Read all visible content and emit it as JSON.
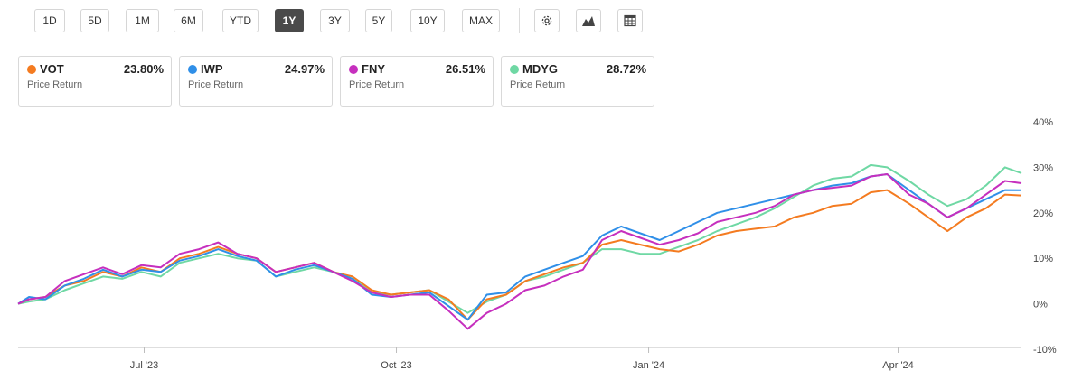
{
  "toolbar": {
    "ranges": [
      "1D",
      "5D",
      "1M",
      "6M",
      "YTD",
      "1Y",
      "3Y",
      "5Y",
      "10Y",
      "MAX"
    ],
    "active_range": "1Y",
    "icons": [
      "gear-icon",
      "area-chart-icon",
      "table-icon"
    ]
  },
  "legend_cards": [
    {
      "symbol": "VOT",
      "value": "23.80%",
      "subtitle": "Price Return",
      "color": "#f47b20"
    },
    {
      "symbol": "IWP",
      "value": "24.97%",
      "subtitle": "Price Return",
      "color": "#2f8fe8"
    },
    {
      "symbol": "FNY",
      "value": "26.51%",
      "subtitle": "Price Return",
      "color": "#c62fbe"
    },
    {
      "symbol": "MDYG",
      "value": "28.72%",
      "subtitle": "Price Return",
      "color": "#6fd8a4"
    }
  ],
  "chart_data": {
    "type": "line",
    "title": "",
    "xlabel": "",
    "ylabel": "",
    "ylim": [
      -10,
      40
    ],
    "yticks": [
      "40%",
      "30%",
      "20%",
      "10%",
      "0%",
      "-10%"
    ],
    "ytick_values": [
      40,
      30,
      20,
      10,
      0,
      -10
    ],
    "xticks": [
      {
        "label": "Jul '23",
        "date": "2023-07-01"
      },
      {
        "label": "Oct '23",
        "date": "2023-10-01"
      },
      {
        "label": "Jan '24",
        "date": "2024-01-01"
      },
      {
        "label": "Apr '24",
        "date": "2024-04-01"
      }
    ],
    "xlim": [
      "2023-05-16",
      "2024-05-16"
    ],
    "grid": false,
    "legend": "top",
    "series": [
      {
        "name": "VOT",
        "color": "#f47b20",
        "points": [
          [
            "2023-05-16",
            0
          ],
          [
            "2023-05-20",
            1
          ],
          [
            "2023-05-26",
            1.5
          ],
          [
            "2023-06-02",
            4
          ],
          [
            "2023-06-09",
            5
          ],
          [
            "2023-06-16",
            7
          ],
          [
            "2023-06-23",
            6
          ],
          [
            "2023-06-30",
            8
          ],
          [
            "2023-07-07",
            7
          ],
          [
            "2023-07-14",
            10
          ],
          [
            "2023-07-21",
            11
          ],
          [
            "2023-07-28",
            12.5
          ],
          [
            "2023-08-04",
            11
          ],
          [
            "2023-08-11",
            10
          ],
          [
            "2023-08-18",
            7
          ],
          [
            "2023-08-25",
            8
          ],
          [
            "2023-09-01",
            9
          ],
          [
            "2023-09-08",
            7
          ],
          [
            "2023-09-15",
            6
          ],
          [
            "2023-09-22",
            3
          ],
          [
            "2023-09-29",
            2
          ],
          [
            "2023-10-06",
            2.5
          ],
          [
            "2023-10-13",
            3
          ],
          [
            "2023-10-20",
            1
          ],
          [
            "2023-10-27",
            -3.5
          ],
          [
            "2023-11-03",
            1
          ],
          [
            "2023-11-10",
            2
          ],
          [
            "2023-11-17",
            5
          ],
          [
            "2023-11-24",
            6.5
          ],
          [
            "2023-12-01",
            8
          ],
          [
            "2023-12-08",
            9
          ],
          [
            "2023-12-15",
            13
          ],
          [
            "2023-12-22",
            14
          ],
          [
            "2023-12-29",
            13
          ],
          [
            "2024-01-05",
            12
          ],
          [
            "2024-01-12",
            11.5
          ],
          [
            "2024-01-19",
            13
          ],
          [
            "2024-01-26",
            15
          ],
          [
            "2024-02-02",
            16
          ],
          [
            "2024-02-09",
            16.5
          ],
          [
            "2024-02-16",
            17
          ],
          [
            "2024-02-23",
            19
          ],
          [
            "2024-03-01",
            20
          ],
          [
            "2024-03-08",
            21.5
          ],
          [
            "2024-03-15",
            22
          ],
          [
            "2024-03-22",
            24.5
          ],
          [
            "2024-03-28",
            25
          ],
          [
            "2024-04-05",
            22
          ],
          [
            "2024-04-12",
            19
          ],
          [
            "2024-04-19",
            16
          ],
          [
            "2024-04-26",
            19
          ],
          [
            "2024-05-03",
            21
          ],
          [
            "2024-05-10",
            24
          ],
          [
            "2024-05-16",
            23.8
          ]
        ]
      },
      {
        "name": "IWP",
        "color": "#2f8fe8",
        "points": [
          [
            "2023-05-16",
            0
          ],
          [
            "2023-05-20",
            1.5
          ],
          [
            "2023-05-26",
            1
          ],
          [
            "2023-06-02",
            4
          ],
          [
            "2023-06-09",
            5.5
          ],
          [
            "2023-06-16",
            7.5
          ],
          [
            "2023-06-23",
            6
          ],
          [
            "2023-06-30",
            7.5
          ],
          [
            "2023-07-07",
            7
          ],
          [
            "2023-07-14",
            9.5
          ],
          [
            "2023-07-21",
            10.5
          ],
          [
            "2023-07-28",
            12
          ],
          [
            "2023-08-04",
            10.5
          ],
          [
            "2023-08-11",
            9.5
          ],
          [
            "2023-08-18",
            6
          ],
          [
            "2023-08-25",
            7.5
          ],
          [
            "2023-09-01",
            8.5
          ],
          [
            "2023-09-08",
            7
          ],
          [
            "2023-09-15",
            5.5
          ],
          [
            "2023-09-22",
            2
          ],
          [
            "2023-09-29",
            1.5
          ],
          [
            "2023-10-06",
            2
          ],
          [
            "2023-10-13",
            2.5
          ],
          [
            "2023-10-20",
            -0.5
          ],
          [
            "2023-10-27",
            -3.5
          ],
          [
            "2023-11-03",
            2
          ],
          [
            "2023-11-10",
            2.5
          ],
          [
            "2023-11-17",
            6
          ],
          [
            "2023-11-24",
            7.5
          ],
          [
            "2023-12-01",
            9
          ],
          [
            "2023-12-08",
            10.5
          ],
          [
            "2023-12-15",
            15
          ],
          [
            "2023-12-22",
            17
          ],
          [
            "2023-12-29",
            15.5
          ],
          [
            "2024-01-05",
            14
          ],
          [
            "2024-01-12",
            16
          ],
          [
            "2024-01-19",
            18
          ],
          [
            "2024-01-26",
            20
          ],
          [
            "2024-02-02",
            21
          ],
          [
            "2024-02-09",
            22
          ],
          [
            "2024-02-16",
            23
          ],
          [
            "2024-02-23",
            24
          ],
          [
            "2024-03-01",
            25
          ],
          [
            "2024-03-08",
            26
          ],
          [
            "2024-03-15",
            26.5
          ],
          [
            "2024-03-22",
            28
          ],
          [
            "2024-03-28",
            28.5
          ],
          [
            "2024-04-05",
            25
          ],
          [
            "2024-04-12",
            22
          ],
          [
            "2024-04-19",
            19
          ],
          [
            "2024-04-26",
            21
          ],
          [
            "2024-05-03",
            23
          ],
          [
            "2024-05-10",
            25
          ],
          [
            "2024-05-16",
            24.97
          ]
        ]
      },
      {
        "name": "FNY",
        "color": "#c62fbe",
        "points": [
          [
            "2023-05-16",
            0
          ],
          [
            "2023-05-20",
            1
          ],
          [
            "2023-05-26",
            1.5
          ],
          [
            "2023-06-02",
            5
          ],
          [
            "2023-06-09",
            6.5
          ],
          [
            "2023-06-16",
            8
          ],
          [
            "2023-06-23",
            6.5
          ],
          [
            "2023-06-30",
            8.5
          ],
          [
            "2023-07-07",
            8
          ],
          [
            "2023-07-14",
            11
          ],
          [
            "2023-07-21",
            12
          ],
          [
            "2023-07-28",
            13.5
          ],
          [
            "2023-08-04",
            11
          ],
          [
            "2023-08-11",
            10
          ],
          [
            "2023-08-18",
            7
          ],
          [
            "2023-08-25",
            8
          ],
          [
            "2023-09-01",
            9
          ],
          [
            "2023-09-08",
            7
          ],
          [
            "2023-09-15",
            5
          ],
          [
            "2023-09-22",
            2.5
          ],
          [
            "2023-09-29",
            1.5
          ],
          [
            "2023-10-06",
            2
          ],
          [
            "2023-10-13",
            2
          ],
          [
            "2023-10-20",
            -1.5
          ],
          [
            "2023-10-27",
            -5.5
          ],
          [
            "2023-11-03",
            -2
          ],
          [
            "2023-11-10",
            0
          ],
          [
            "2023-11-17",
            3
          ],
          [
            "2023-11-24",
            4
          ],
          [
            "2023-12-01",
            6
          ],
          [
            "2023-12-08",
            7.5
          ],
          [
            "2023-12-15",
            14
          ],
          [
            "2023-12-22",
            16
          ],
          [
            "2023-12-29",
            14.5
          ],
          [
            "2024-01-05",
            13
          ],
          [
            "2024-01-12",
            14
          ],
          [
            "2024-01-19",
            15.5
          ],
          [
            "2024-01-26",
            18
          ],
          [
            "2024-02-02",
            19
          ],
          [
            "2024-02-09",
            20
          ],
          [
            "2024-02-16",
            21.5
          ],
          [
            "2024-02-23",
            24
          ],
          [
            "2024-03-01",
            25
          ],
          [
            "2024-03-08",
            25.5
          ],
          [
            "2024-03-15",
            26
          ],
          [
            "2024-03-22",
            28
          ],
          [
            "2024-03-28",
            28.5
          ],
          [
            "2024-04-05",
            24
          ],
          [
            "2024-04-12",
            22
          ],
          [
            "2024-04-19",
            19
          ],
          [
            "2024-04-26",
            21
          ],
          [
            "2024-05-03",
            24
          ],
          [
            "2024-05-10",
            27
          ],
          [
            "2024-05-16",
            26.51
          ]
        ]
      },
      {
        "name": "MDYG",
        "color": "#6fd8a4",
        "points": [
          [
            "2023-05-16",
            0
          ],
          [
            "2023-05-20",
            0.5
          ],
          [
            "2023-05-26",
            1
          ],
          [
            "2023-06-02",
            3
          ],
          [
            "2023-06-09",
            4.5
          ],
          [
            "2023-06-16",
            6
          ],
          [
            "2023-06-23",
            5.5
          ],
          [
            "2023-06-30",
            7
          ],
          [
            "2023-07-07",
            6
          ],
          [
            "2023-07-14",
            9
          ],
          [
            "2023-07-21",
            10
          ],
          [
            "2023-07-28",
            11
          ],
          [
            "2023-08-04",
            10
          ],
          [
            "2023-08-11",
            9.5
          ],
          [
            "2023-08-18",
            6
          ],
          [
            "2023-08-25",
            7
          ],
          [
            "2023-09-01",
            8
          ],
          [
            "2023-09-08",
            7
          ],
          [
            "2023-09-15",
            5.5
          ],
          [
            "2023-09-22",
            2.5
          ],
          [
            "2023-09-29",
            2
          ],
          [
            "2023-10-06",
            2.5
          ],
          [
            "2023-10-13",
            3
          ],
          [
            "2023-10-20",
            0.5
          ],
          [
            "2023-10-27",
            -2
          ],
          [
            "2023-11-03",
            0.5
          ],
          [
            "2023-11-10",
            2
          ],
          [
            "2023-11-17",
            5
          ],
          [
            "2023-11-24",
            6
          ],
          [
            "2023-12-01",
            7.5
          ],
          [
            "2023-12-08",
            9
          ],
          [
            "2023-12-15",
            12
          ],
          [
            "2023-12-22",
            12
          ],
          [
            "2023-12-29",
            11
          ],
          [
            "2024-01-05",
            11
          ],
          [
            "2024-01-12",
            12.5
          ],
          [
            "2024-01-19",
            14
          ],
          [
            "2024-01-26",
            16
          ],
          [
            "2024-02-02",
            17.5
          ],
          [
            "2024-02-09",
            19
          ],
          [
            "2024-02-16",
            21
          ],
          [
            "2024-02-23",
            23.5
          ],
          [
            "2024-03-01",
            26
          ],
          [
            "2024-03-08",
            27.5
          ],
          [
            "2024-03-15",
            28
          ],
          [
            "2024-03-22",
            30.5
          ],
          [
            "2024-03-28",
            30
          ],
          [
            "2024-04-05",
            27
          ],
          [
            "2024-04-12",
            24
          ],
          [
            "2024-04-19",
            21.5
          ],
          [
            "2024-04-26",
            23
          ],
          [
            "2024-05-03",
            26
          ],
          [
            "2024-05-10",
            30
          ],
          [
            "2024-05-16",
            28.72
          ]
        ]
      }
    ]
  }
}
